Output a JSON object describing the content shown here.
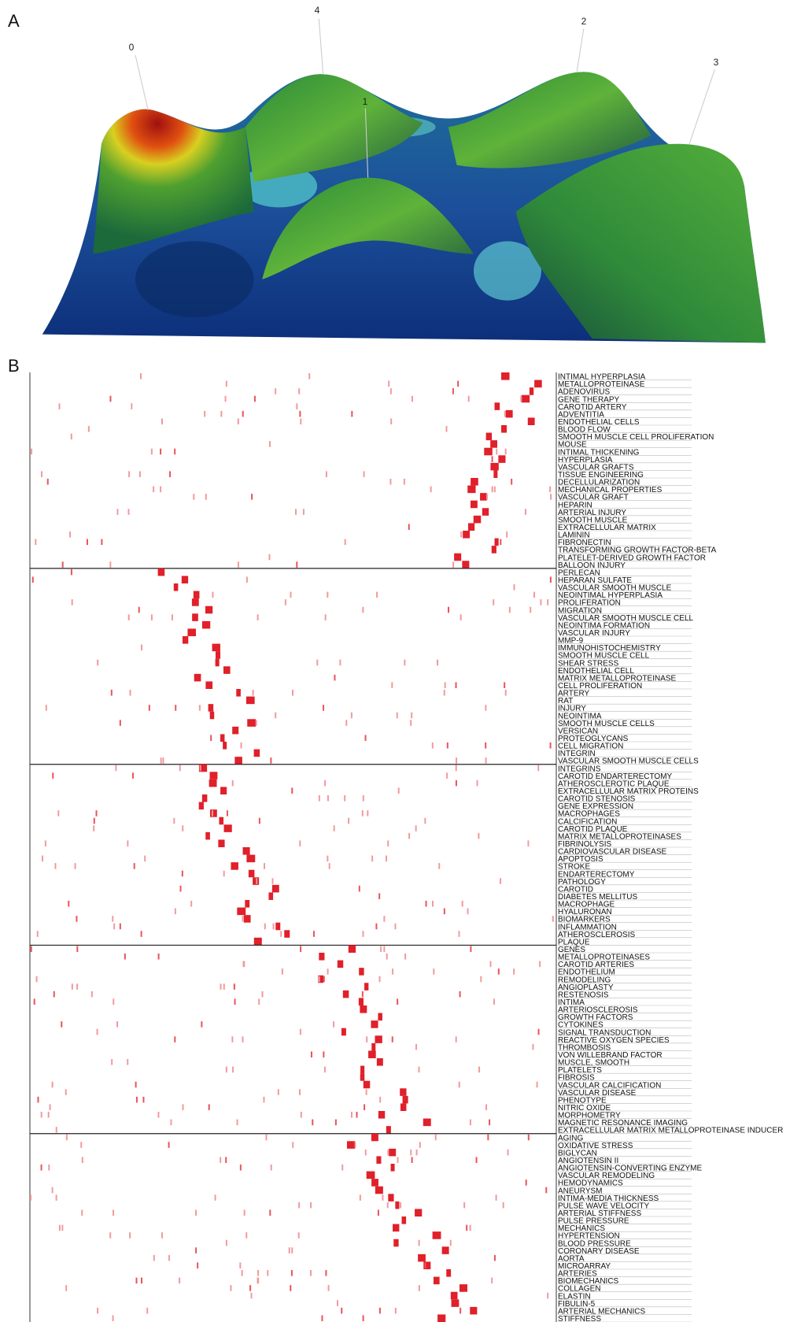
{
  "panels": {
    "a": {
      "label": "A",
      "peaks": [
        "0",
        "4",
        "1",
        "2",
        "3"
      ]
    },
    "b": {
      "label": "B",
      "groups": [
        [
          "INTIMAL HYPERPLASIA",
          "METALLOPROTEINASE",
          "ADENOVIRUS",
          "GENE THERAPY",
          "CAROTID ARTERY",
          "ADVENTITIA",
          "ENDOTHELIAL CELLS",
          "BLOOD FLOW",
          "SMOOTH MUSCLE CELL PROLIFERATION",
          "MOUSE",
          "INTIMAL THICKENING",
          "HYPERPLASIA",
          "VASCULAR GRAFTS",
          "TISSUE ENGINEERING",
          "DECELLULARIZATION",
          "MECHANICAL PROPERTIES",
          "VASCULAR GRAFT",
          "HEPARIN",
          "ARTERIAL INJURY",
          "SMOOTH MUSCLE",
          "EXTRACELLULAR MATRIX",
          "LAMININ",
          "FIBRONECTIN",
          "TRANSFORMING GROWTH FACTOR-BETA",
          "PLATELET-DERIVED GROWTH FACTOR",
          "BALLOON INJURY"
        ],
        [
          "PERLECAN",
          "HEPARAN SULFATE",
          "VASCULAR SMOOTH MUSCLE",
          "NEOINTIMAL HYPERPLASIA",
          "PROLIFERATION",
          "MIGRATION",
          "VASCULAR SMOOTH MUSCLE CELL",
          "NEOINTIMA FORMATION",
          "VASCULAR INJURY",
          "MMP-9",
          "IMMUNOHISTOCHEMISTRY",
          "SMOOTH MUSCLE CELL",
          "SHEAR STRESS",
          "ENDOTHELIAL CELL",
          "MATRIX METALLOPROTEINASE",
          "CELL PROLIFERATION",
          "ARTERY",
          "RAT",
          "INJURY",
          "NEOINTIMA",
          "SMOOTH MUSCLE CELLS",
          "VERSICAN",
          "PROTEOGLYCANS",
          "CELL MIGRATION",
          "INTEGRIN",
          "VASCULAR SMOOTH MUSCLE CELLS"
        ],
        [
          "INTEGRINS",
          "CAROTID ENDARTERECTOMY",
          "ATHEROSCLEROTIC PLAQUE",
          "EXTRACELLULAR MATRIX PROTEINS",
          "CAROTID STENOSIS",
          "GENE EXPRESSION",
          "MACROPHAGES",
          "CALCIFICATION",
          "CAROTID PLAQUE",
          "MATRIX METALLOPROTEINASES",
          "FIBRINOLYSIS",
          "CARDIOVASCULAR DISEASE",
          "APOPTOSIS",
          "STROKE",
          "ENDARTERECTOMY",
          "PATHOLOGY",
          "CAROTID",
          "DIABETES MELLITUS",
          "MACROPHAGE",
          "HYALURONAN",
          "BIOMARKERS",
          "INFLAMMATION",
          "ATHEROSCLEROSIS",
          "PLAQUE"
        ],
        [
          "GENES",
          "METALLOPROTEINASES",
          "CAROTID ARTERIES",
          "ENDOTHELIUM",
          "REMODELING",
          "ANGIOPLASTY",
          "RESTENOSIS",
          "INTIMA",
          "ARTERIOSCLEROSIS",
          "GROWTH FACTORS",
          "CYTOKINES",
          "SIGNAL TRANSDUCTION",
          "REACTIVE OXYGEN SPECIES",
          "THROMBOSIS",
          "VON WILLEBRAND FACTOR",
          "MUSCLE, SMOOTH",
          "PLATELETS",
          "FIBROSIS",
          "VASCULAR CALCIFICATION",
          "VASCULAR DISEASE",
          "PHENOTYPE",
          "NITRIC OXIDE",
          "MORPHOMETRY",
          "MAGNETIC RESONANCE IMAGING",
          "EXTRACELLULAR MATRIX METALLOPROTEINASE INDUCER"
        ],
        [
          "AGING",
          "OXIDATIVE STRESS",
          "BIGLYCAN",
          "ANGIOTENSIN II",
          "ANGIOTENSIN-CONVERTING ENZYME",
          "VASCULAR REMODELING",
          "HEMODYNAMICS",
          "ANEURYSM",
          "INTIMA-MEDIA THICKNESS",
          "PULSE WAVE VELOCITY",
          "ARTERIAL STIFFNESS",
          "PULSE PRESSURE",
          "MECHANICS",
          "HYPERTENSION",
          "BLOOD PRESSURE",
          "CORONARY DISEASE",
          "AORTA",
          "MICROARRAY",
          "ARTERIES",
          "BIOMECHANICS",
          "COLLAGEN",
          "ELASTIN",
          "FIBULIN-5",
          "ARTERIAL MECHANICS",
          "STIFFNESS"
        ]
      ]
    }
  }
}
